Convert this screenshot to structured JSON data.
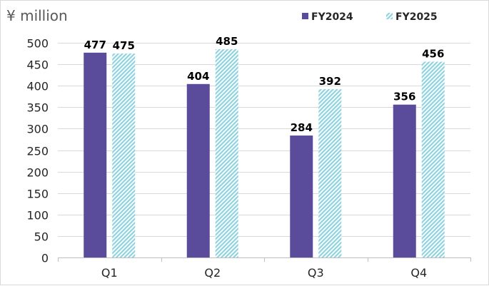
{
  "chart_data": {
    "type": "bar",
    "unit_label": "¥ million",
    "categories": [
      "Q1",
      "Q2",
      "Q3",
      "Q4"
    ],
    "series": [
      {
        "name": "FY2024",
        "values": [
          477,
          404,
          284,
          356
        ],
        "color": "#5b4b9b",
        "pattern": "solid"
      },
      {
        "name": "FY2025",
        "values": [
          475,
          485,
          392,
          456
        ],
        "color": "#8fd3df",
        "pattern": "diagonal-hatch"
      }
    ],
    "ylim": [
      0,
      500
    ],
    "yticks": [
      0,
      50,
      100,
      150,
      200,
      250,
      300,
      350,
      400,
      450,
      500
    ],
    "grid": true,
    "legend_position": "top-right",
    "data_labels": true
  }
}
